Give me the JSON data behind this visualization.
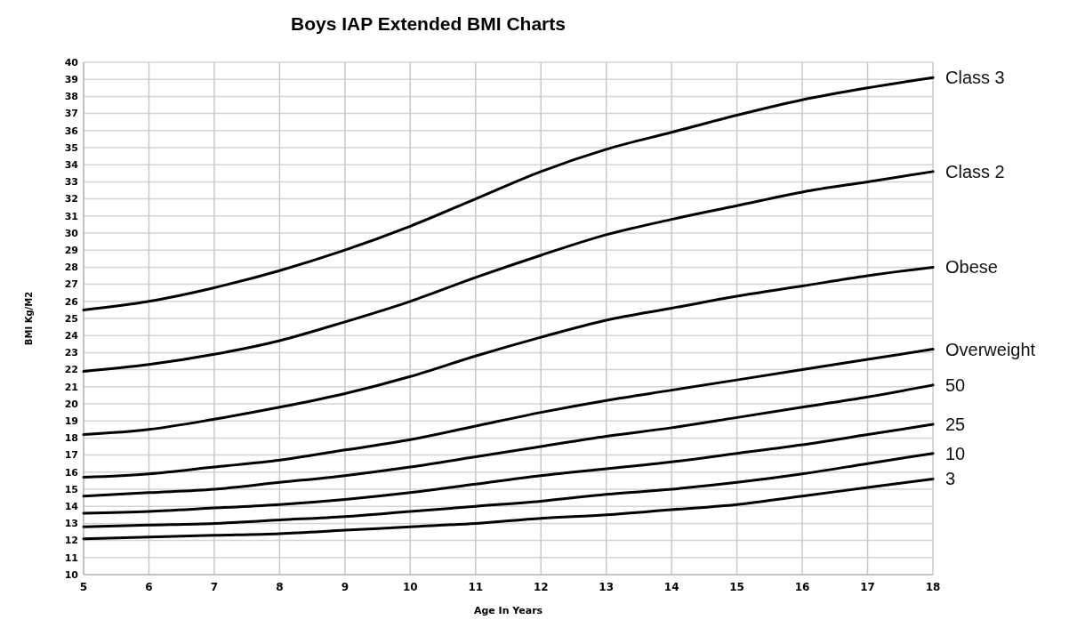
{
  "chart_data": {
    "type": "line",
    "title": "Boys IAP Extended BMI Charts",
    "xlabel": "Age In Years",
    "ylabel": "BMI Kg/M2",
    "x": [
      5,
      6,
      7,
      8,
      9,
      10,
      11,
      12,
      13,
      14,
      15,
      16,
      17,
      18
    ],
    "series": [
      {
        "name": "Class 3",
        "color": "#000000",
        "values": [
          25.5,
          26.0,
          26.8,
          27.8,
          29.0,
          30.4,
          32.0,
          33.6,
          34.9,
          35.9,
          36.9,
          37.8,
          38.5,
          39.1
        ]
      },
      {
        "name": "Class 2",
        "color": "#000000",
        "values": [
          21.9,
          22.3,
          22.9,
          23.7,
          24.8,
          26.0,
          27.4,
          28.7,
          29.9,
          30.8,
          31.6,
          32.4,
          33.0,
          33.6
        ]
      },
      {
        "name": "Obese",
        "color": "#000000",
        "values": [
          18.2,
          18.5,
          19.1,
          19.8,
          20.6,
          21.6,
          22.8,
          23.9,
          24.9,
          25.6,
          26.3,
          26.9,
          27.5,
          28.0
        ]
      },
      {
        "name": "Overweight",
        "color": "#000000",
        "values": [
          15.7,
          15.9,
          16.3,
          16.7,
          17.3,
          17.9,
          18.7,
          19.5,
          20.2,
          20.8,
          21.4,
          22.0,
          22.6,
          23.2
        ]
      },
      {
        "name": "50",
        "color": "#000000",
        "values": [
          14.6,
          14.8,
          15.0,
          15.4,
          15.8,
          16.3,
          16.9,
          17.5,
          18.1,
          18.6,
          19.2,
          19.8,
          20.4,
          21.1
        ]
      },
      {
        "name": "25",
        "color": "#000000",
        "values": [
          13.6,
          13.7,
          13.9,
          14.1,
          14.4,
          14.8,
          15.3,
          15.8,
          16.2,
          16.6,
          17.1,
          17.6,
          18.2,
          18.8
        ]
      },
      {
        "name": "10",
        "color": "#000000",
        "values": [
          12.8,
          12.9,
          13.0,
          13.2,
          13.4,
          13.7,
          14.0,
          14.3,
          14.7,
          15.0,
          15.4,
          15.9,
          16.5,
          17.1
        ]
      },
      {
        "name": "3",
        "color": "#000000",
        "values": [
          12.1,
          12.2,
          12.3,
          12.4,
          12.6,
          12.8,
          13.0,
          13.3,
          13.5,
          13.8,
          14.1,
          14.6,
          15.1,
          15.6
        ]
      }
    ],
    "xlim": [
      5,
      18
    ],
    "xticks": [
      5,
      6,
      7,
      8,
      9,
      10,
      11,
      12,
      13,
      14,
      15,
      16,
      17,
      18
    ],
    "ylim": [
      10,
      40
    ],
    "yticks": [
      10,
      11,
      12,
      13,
      14,
      15,
      16,
      17,
      18,
      19,
      20,
      21,
      22,
      23,
      24,
      25,
      26,
      27,
      28,
      29,
      30,
      31,
      32,
      33,
      34,
      35,
      36,
      37,
      38,
      39,
      40
    ],
    "grid": true,
    "marker": "none",
    "line_style": "solid"
  }
}
